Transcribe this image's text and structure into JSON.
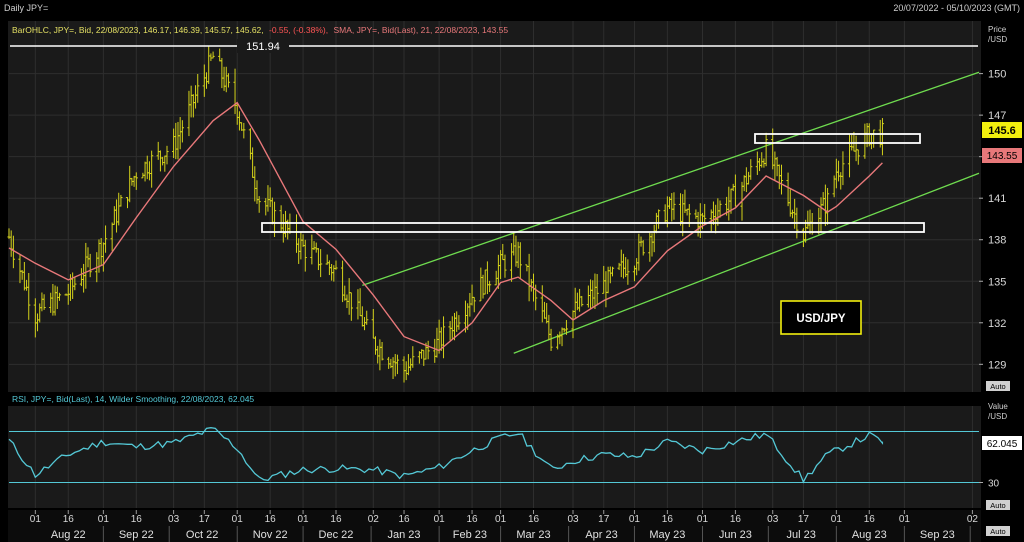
{
  "window": {
    "title": "Daily JPY=",
    "date_range": "20/07/2022 - 05/10/2023 (GMT)"
  },
  "price_panel": {
    "legend_ohlc": "BarOHLC, JPY=, Bid, 22/08/2023, 146.17, 146.39, 145.57, 145.62,",
    "legend_change": "-0.55, (-0.38%),",
    "legend_sma": "SMA, JPY=, Bid(Last), 21, 22/08/2023, 143.55",
    "axis_title_1": "Price",
    "axis_title_2": "/USD",
    "auto_label": "Auto",
    "y_ticks": [
      129,
      132,
      135,
      138,
      141,
      144,
      147,
      150
    ],
    "ylim": [
      127,
      153.8
    ],
    "last_price_label": "145.6",
    "sma_label": "143.55",
    "high_label": "151.94",
    "annotation": "USD/JPY"
  },
  "rsi_panel": {
    "legend": "RSI, JPY=, Bid(Last), 14, Wilder Smoothing, 22/08/2023, 62.045",
    "axis_title_1": "Value",
    "axis_title_2": "/USD",
    "auto_label": "Auto",
    "y_ticks": [
      30
    ],
    "last_value_label": "62.045",
    "ylim": [
      10,
      90
    ],
    "upper_band": 70,
    "lower_band": 30
  },
  "x_axis": {
    "day_labels": [
      "01",
      "16",
      "01",
      "16",
      "03",
      "17",
      "01",
      "16",
      "01",
      "16",
      "02",
      "16",
      "01",
      "16",
      "01",
      "16",
      "03",
      "17",
      "01",
      "16",
      "01",
      "16",
      "03",
      "17",
      "01",
      "16",
      "01",
      "02"
    ],
    "month_labels": [
      "Aug 22",
      "Sep 22",
      "Oct 22",
      "Nov 22",
      "Dec 22",
      "Jan 23",
      "Feb 23",
      "Mar 23",
      "Apr 23",
      "May 23",
      "Jun 23",
      "Jul 23",
      "Aug 23",
      "Sep 23"
    ],
    "auto_label": "Auto"
  },
  "colors": {
    "bars": "#d4d21a",
    "sma": "#e8787a",
    "channel": "#6fdc4f",
    "rsi": "#54c8d6",
    "band": "#54c8d6",
    "last_price_bg": "#f2ef0e",
    "sma_label_bg": "#e8787a",
    "annotation_border": "#f2ef0e"
  },
  "chart_data": {
    "type": "line",
    "title": "Daily JPY=",
    "xlabel": "",
    "ylabel": "Price /USD",
    "x": [
      "2022-07-20",
      "2022-08-01",
      "2022-08-16",
      "2022-09-01",
      "2022-09-16",
      "2022-10-03",
      "2022-10-21",
      "2022-11-01",
      "2022-11-11",
      "2022-12-01",
      "2022-12-16",
      "2023-01-02",
      "2023-01-16",
      "2023-02-01",
      "2023-02-16",
      "2023-03-01",
      "2023-03-09",
      "2023-03-24",
      "2023-04-03",
      "2023-04-17",
      "2023-05-01",
      "2023-05-16",
      "2023-06-01",
      "2023-06-16",
      "2023-06-30",
      "2023-07-17",
      "2023-07-28",
      "2023-08-01",
      "2023-08-16",
      "2023-08-22"
    ],
    "series": [
      {
        "name": "BarOHLC, JPY=, Bid",
        "values": [
          138.2,
          132.6,
          134.2,
          137.8,
          142.9,
          144.8,
          151.2,
          147.5,
          141.0,
          137.4,
          135.7,
          130.6,
          128.6,
          130.6,
          134.0,
          136.2,
          137.0,
          130.8,
          132.8,
          134.7,
          136.7,
          140.3,
          139.4,
          141.2,
          144.5,
          138.4,
          140.8,
          143.0,
          145.6,
          145.62
        ]
      },
      {
        "name": "SMA, JPY=, Bid(Last), 21",
        "values": [
          137.4,
          136.3,
          135.1,
          136.2,
          139.6,
          143.3,
          146.6,
          147.9,
          145.2,
          139.3,
          137.3,
          134.0,
          131.0,
          130.0,
          132.0,
          134.9,
          135.3,
          133.6,
          132.2,
          133.6,
          134.6,
          137.2,
          139.0,
          140.3,
          142.6,
          141.2,
          140.0,
          140.4,
          142.6,
          143.55
        ]
      },
      {
        "name": "RSI, JPY=, Bid(Last), 14, Wilder Smoothing",
        "values": [
          63,
          36,
          52,
          62,
          58,
          61,
          72,
          57,
          32,
          40,
          41,
          40,
          35,
          42,
          55,
          65,
          69,
          40,
          47,
          52,
          50,
          62,
          55,
          62,
          68,
          32,
          52,
          55,
          67,
          62.045
        ]
      }
    ]
  }
}
